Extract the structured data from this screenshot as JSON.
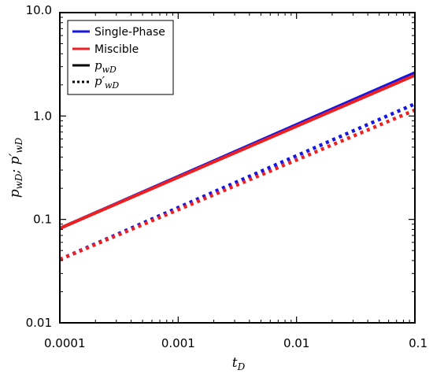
{
  "chart_data": {
    "type": "line",
    "xscale": "log",
    "yscale": "log",
    "xlim": [
      0.0001,
      0.1
    ],
    "ylim": [
      0.01,
      10.0
    ],
    "xlabel": "t_D",
    "ylabel": "p_wD; p'_wD",
    "xticks": [
      0.0001,
      0.001,
      0.01,
      0.1
    ],
    "xtick_labels": [
      "0.0001",
      "0.001",
      "0.01",
      "0.1"
    ],
    "yticks": [
      0.01,
      0.1,
      1.0,
      10.0
    ],
    "ytick_labels": [
      "0.01",
      "0.1",
      "1.0",
      "10.0"
    ],
    "grid": false,
    "legend_position": "top-left",
    "legend": [
      {
        "label": "Single-Phase",
        "color": "#1515e6",
        "style": "solid"
      },
      {
        "label": "Miscible",
        "color": "#ee1f1f",
        "style": "solid"
      },
      {
        "label": "p_wD",
        "color": "#000000",
        "style": "solid"
      },
      {
        "label": "p'_wD",
        "color": "#000000",
        "style": "dotted"
      }
    ],
    "series": [
      {
        "name": "Single-Phase",
        "quantity": "p_wD",
        "style": "solid",
        "color": "#1515e6",
        "x": [
          0.0001,
          0.1
        ],
        "y": [
          0.082,
          2.62
        ]
      },
      {
        "name": "Miscible",
        "quantity": "p_wD",
        "style": "solid",
        "color": "#ee1f1f",
        "x": [
          0.0001,
          0.1
        ],
        "y": [
          0.082,
          2.48
        ]
      },
      {
        "name": "Single-Phase",
        "quantity": "p'_wD",
        "style": "dotted",
        "color": "#1515e6",
        "x": [
          0.0001,
          0.1
        ],
        "y": [
          0.041,
          1.31
        ]
      },
      {
        "name": "Miscible",
        "quantity": "p'_wD",
        "style": "dotted",
        "color": "#ee1f1f",
        "x": [
          0.0001,
          0.1
        ],
        "y": [
          0.041,
          1.14
        ]
      }
    ]
  }
}
